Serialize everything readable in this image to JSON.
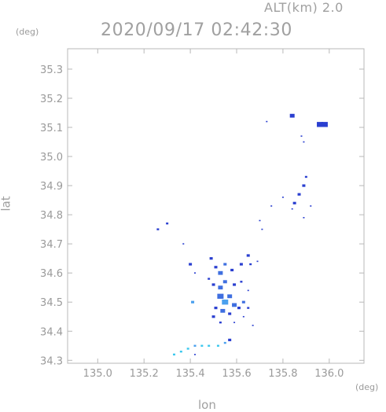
{
  "header": {
    "altitude": "ALT(km)  2.0",
    "timestamp": "2020/09/17 02:42:30"
  },
  "chart_data": {
    "type": "scatter",
    "title": "2020/09/17 02:42:30",
    "subtitle": "ALT(km)  2.0",
    "xlabel": "lon",
    "ylabel": "lat",
    "x_unit": "(deg)",
    "y_unit": "(deg)",
    "xlim": [
      134.87,
      136.15
    ],
    "ylim": [
      34.29,
      35.37
    ],
    "x_ticks": [
      "135.0",
      "135.2",
      "135.4",
      "135.6",
      "135.8",
      "136.0"
    ],
    "y_ticks": [
      "34.3",
      "34.4",
      "34.5",
      "34.6",
      "34.7",
      "34.8",
      "34.9",
      "35.0",
      "35.1",
      "35.2",
      "35.3"
    ],
    "grid": false,
    "colors": {
      "dark_blue": "#2a3fd0",
      "mid_blue": "#3f6fe0",
      "light_blue": "#4aa0ee",
      "cyan": "#3cc8ee",
      "axis": "#b8b8b8",
      "tick_text": "#9a9a9a"
    },
    "series": [
      {
        "values_desc": "echo",
        "points": [
          {
            "x": 135.96,
            "y": 35.11,
            "s": 4,
            "c": "dark_blue"
          },
          {
            "x": 135.98,
            "y": 35.11,
            "s": 4,
            "c": "dark_blue"
          },
          {
            "x": 135.84,
            "y": 35.14,
            "s": 3,
            "c": "dark_blue"
          },
          {
            "x": 135.73,
            "y": 35.12,
            "s": 1,
            "c": "dark_blue"
          },
          {
            "x": 135.88,
            "y": 35.07,
            "s": 1,
            "c": "dark_blue"
          },
          {
            "x": 135.89,
            "y": 35.05,
            "s": 1,
            "c": "dark_blue"
          },
          {
            "x": 135.9,
            "y": 34.93,
            "s": 1.5,
            "c": "dark_blue"
          },
          {
            "x": 135.89,
            "y": 34.9,
            "s": 2,
            "c": "dark_blue"
          },
          {
            "x": 135.87,
            "y": 34.87,
            "s": 2,
            "c": "dark_blue"
          },
          {
            "x": 135.85,
            "y": 34.84,
            "s": 2,
            "c": "dark_blue"
          },
          {
            "x": 135.8,
            "y": 34.86,
            "s": 1,
            "c": "dark_blue"
          },
          {
            "x": 135.75,
            "y": 34.83,
            "s": 1,
            "c": "dark_blue"
          },
          {
            "x": 135.84,
            "y": 34.82,
            "s": 1,
            "c": "dark_blue"
          },
          {
            "x": 135.89,
            "y": 34.79,
            "s": 1,
            "c": "dark_blue"
          },
          {
            "x": 135.92,
            "y": 34.83,
            "s": 1,
            "c": "dark_blue"
          },
          {
            "x": 135.7,
            "y": 34.78,
            "s": 1,
            "c": "dark_blue"
          },
          {
            "x": 135.71,
            "y": 34.75,
            "s": 1,
            "c": "dark_blue"
          },
          {
            "x": 135.26,
            "y": 34.75,
            "s": 1.5,
            "c": "dark_blue"
          },
          {
            "x": 135.3,
            "y": 34.77,
            "s": 1.5,
            "c": "dark_blue"
          },
          {
            "x": 135.37,
            "y": 34.7,
            "s": 1,
            "c": "dark_blue"
          },
          {
            "x": 135.49,
            "y": 34.65,
            "s": 2,
            "c": "dark_blue"
          },
          {
            "x": 135.51,
            "y": 34.62,
            "s": 2,
            "c": "dark_blue"
          },
          {
            "x": 135.53,
            "y": 34.6,
            "s": 3,
            "c": "mid_blue"
          },
          {
            "x": 135.55,
            "y": 34.63,
            "s": 2,
            "c": "mid_blue"
          },
          {
            "x": 135.58,
            "y": 34.61,
            "s": 2,
            "c": "dark_blue"
          },
          {
            "x": 135.62,
            "y": 34.63,
            "s": 2,
            "c": "dark_blue"
          },
          {
            "x": 135.65,
            "y": 34.66,
            "s": 2,
            "c": "dark_blue"
          },
          {
            "x": 135.66,
            "y": 34.63,
            "s": 1.5,
            "c": "dark_blue"
          },
          {
            "x": 135.69,
            "y": 34.64,
            "s": 1,
            "c": "dark_blue"
          },
          {
            "x": 135.4,
            "y": 34.63,
            "s": 2,
            "c": "dark_blue"
          },
          {
            "x": 135.42,
            "y": 34.6,
            "s": 1,
            "c": "dark_blue"
          },
          {
            "x": 135.48,
            "y": 34.58,
            "s": 1.5,
            "c": "dark_blue"
          },
          {
            "x": 135.5,
            "y": 34.56,
            "s": 2,
            "c": "dark_blue"
          },
          {
            "x": 135.53,
            "y": 34.55,
            "s": 3,
            "c": "mid_blue"
          },
          {
            "x": 135.55,
            "y": 34.57,
            "s": 2.5,
            "c": "mid_blue"
          },
          {
            "x": 135.59,
            "y": 34.56,
            "s": 2,
            "c": "dark_blue"
          },
          {
            "x": 135.62,
            "y": 34.57,
            "s": 1.5,
            "c": "dark_blue"
          },
          {
            "x": 135.65,
            "y": 34.54,
            "s": 1,
            "c": "dark_blue"
          },
          {
            "x": 135.53,
            "y": 34.52,
            "s": 4,
            "c": "mid_blue"
          },
          {
            "x": 135.55,
            "y": 34.5,
            "s": 4,
            "c": "light_blue"
          },
          {
            "x": 135.57,
            "y": 34.52,
            "s": 3,
            "c": "mid_blue"
          },
          {
            "x": 135.59,
            "y": 34.49,
            "s": 3,
            "c": "mid_blue"
          },
          {
            "x": 135.51,
            "y": 34.48,
            "s": 2,
            "c": "dark_blue"
          },
          {
            "x": 135.54,
            "y": 34.47,
            "s": 3,
            "c": "mid_blue"
          },
          {
            "x": 135.57,
            "y": 34.46,
            "s": 2,
            "c": "dark_blue"
          },
          {
            "x": 135.61,
            "y": 34.48,
            "s": 2,
            "c": "dark_blue"
          },
          {
            "x": 135.63,
            "y": 34.5,
            "s": 2,
            "c": "mid_blue"
          },
          {
            "x": 135.65,
            "y": 34.48,
            "s": 1.5,
            "c": "dark_blue"
          },
          {
            "x": 135.5,
            "y": 34.45,
            "s": 2,
            "c": "dark_blue"
          },
          {
            "x": 135.53,
            "y": 34.43,
            "s": 1.5,
            "c": "dark_blue"
          },
          {
            "x": 135.59,
            "y": 34.43,
            "s": 1,
            "c": "dark_blue"
          },
          {
            "x": 135.63,
            "y": 34.45,
            "s": 1,
            "c": "dark_blue"
          },
          {
            "x": 135.67,
            "y": 34.42,
            "s": 1,
            "c": "dark_blue"
          },
          {
            "x": 135.41,
            "y": 34.5,
            "s": 2,
            "c": "light_blue"
          },
          {
            "x": 135.57,
            "y": 34.37,
            "s": 2,
            "c": "dark_blue"
          },
          {
            "x": 135.55,
            "y": 34.36,
            "s": 1.5,
            "c": "light_blue"
          },
          {
            "x": 135.52,
            "y": 34.35,
            "s": 1.5,
            "c": "cyan"
          },
          {
            "x": 135.48,
            "y": 34.35,
            "s": 1.5,
            "c": "cyan"
          },
          {
            "x": 135.45,
            "y": 34.35,
            "s": 1.5,
            "c": "cyan"
          },
          {
            "x": 135.42,
            "y": 34.35,
            "s": 1.5,
            "c": "light_blue"
          },
          {
            "x": 135.39,
            "y": 34.34,
            "s": 1.5,
            "c": "cyan"
          },
          {
            "x": 135.36,
            "y": 34.33,
            "s": 1.5,
            "c": "cyan"
          },
          {
            "x": 135.33,
            "y": 34.32,
            "s": 1.5,
            "c": "cyan"
          },
          {
            "x": 135.42,
            "y": 34.32,
            "s": 1,
            "c": "dark_blue"
          }
        ]
      }
    ]
  }
}
